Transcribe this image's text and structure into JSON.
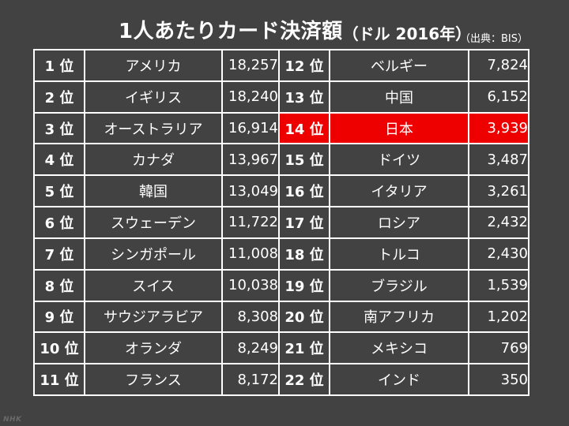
{
  "header": {
    "title": "1人あたりカード決済額",
    "unit": "（ドル 2016年）",
    "source": "（出典：BIS）"
  },
  "logo": "NHK",
  "colors": {
    "background": "#424242",
    "highlight": "#ee0000",
    "border": "#ffffff"
  },
  "rows": [
    {
      "rank": "1 位",
      "country": "アメリカ",
      "amount": "18,257"
    },
    {
      "rank": "2 位",
      "country": "イギリス",
      "amount": "18,240"
    },
    {
      "rank": "3 位",
      "country": "オーストラリア",
      "amount": "16,914"
    },
    {
      "rank": "4 位",
      "country": "カナダ",
      "amount": "13,967"
    },
    {
      "rank": "5 位",
      "country": "韓国",
      "amount": "13,049"
    },
    {
      "rank": "6 位",
      "country": "スウェーデン",
      "amount": "11,722"
    },
    {
      "rank": "7 位",
      "country": "シンガポール",
      "amount": "11,008"
    },
    {
      "rank": "8 位",
      "country": "スイス",
      "amount": "10,038"
    },
    {
      "rank": "9 位",
      "country": "サウジアラビア",
      "amount": "8,308"
    },
    {
      "rank": "10 位",
      "country": "オランダ",
      "amount": "8,249"
    },
    {
      "rank": "11 位",
      "country": "フランス",
      "amount": "8,172"
    },
    {
      "rank": "12 位",
      "country": "ベルギー",
      "amount": "7,824"
    },
    {
      "rank": "13 位",
      "country": "中国",
      "amount": "6,152"
    },
    {
      "rank": "14 位",
      "country": "日本",
      "amount": "3,939",
      "highlight": true
    },
    {
      "rank": "15 位",
      "country": "ドイツ",
      "amount": "3,487"
    },
    {
      "rank": "16 位",
      "country": "イタリア",
      "amount": "3,261"
    },
    {
      "rank": "17 位",
      "country": "ロシア",
      "amount": "2,432"
    },
    {
      "rank": "18 位",
      "country": "トルコ",
      "amount": "2,430"
    },
    {
      "rank": "19 位",
      "country": "ブラジル",
      "amount": "1,539"
    },
    {
      "rank": "20 位",
      "country": "南アフリカ",
      "amount": "1,202"
    },
    {
      "rank": "21 位",
      "country": "メキシコ",
      "amount": "769"
    },
    {
      "rank": "22 位",
      "country": "インド",
      "amount": "350"
    }
  ]
}
